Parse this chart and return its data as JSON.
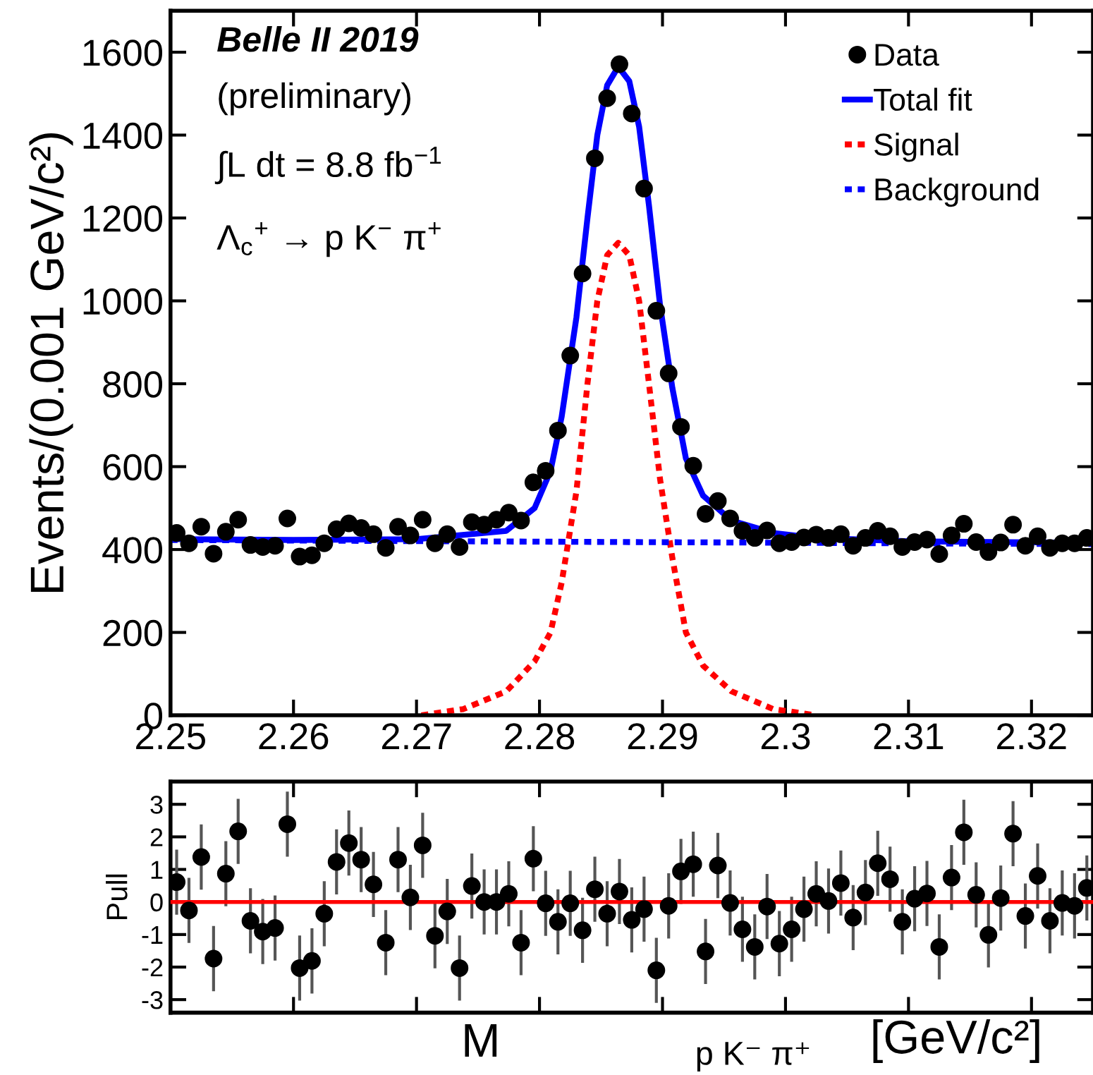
{
  "chart_data": [
    {
      "type": "scatter",
      "ylabel": "Events/(0.001 GeV/c²)",
      "xlim": [
        2.25,
        2.325
      ],
      "ylim": [
        0,
        1700
      ],
      "xticks": [
        2.25,
        2.26,
        2.27,
        2.28,
        2.29,
        2.3,
        2.31,
        2.32
      ],
      "yticks": [
        0,
        200,
        400,
        600,
        800,
        1000,
        1200,
        1400,
        1600
      ],
      "grid": false,
      "legend": "top right",
      "annotations": [
        "Belle II 2019",
        "(preliminary)",
        "∫L dt = 8.8 fb$^{−1}$",
        "Λ$_{c}$$^{+}$ → p K$^{−}$ π$^{+}$"
      ],
      "series": [
        {
          "name": "Data",
          "marker": "circle",
          "color": "#000000",
          "x": [
            2.2505,
            2.2515,
            2.2525,
            2.2535,
            2.2545,
            2.2555,
            2.2565,
            2.2575,
            2.2585,
            2.2595,
            2.2605,
            2.2615,
            2.2625,
            2.2635,
            2.2645,
            2.2655,
            2.2665,
            2.2675,
            2.2685,
            2.2695,
            2.2705,
            2.2715,
            2.2725,
            2.2735,
            2.2745,
            2.2755,
            2.2765,
            2.2775,
            2.2785,
            2.2795,
            2.2805,
            2.2815,
            2.2825,
            2.2835,
            2.2845,
            2.2855,
            2.2865,
            2.2875,
            2.2885,
            2.2895,
            2.2905,
            2.2915,
            2.2925,
            2.2935,
            2.2945,
            2.2955,
            2.2965,
            2.2975,
            2.2985,
            2.2995,
            2.3005,
            2.3015,
            2.3025,
            2.3035,
            2.3045,
            2.3055,
            2.3065,
            2.3075,
            2.3085,
            2.3095,
            2.3105,
            2.3115,
            2.3125,
            2.3135,
            2.3145,
            2.3155,
            2.3165,
            2.3175,
            2.3185,
            2.3195,
            2.3205,
            2.3215,
            2.3225,
            2.3235,
            2.3245
          ],
          "values": [
            440,
            415,
            455,
            390,
            443,
            472,
            411,
            406,
            409,
            475,
            383,
            386,
            415,
            449,
            463,
            452,
            437,
            404,
            455,
            434,
            472,
            415,
            437,
            406,
            466,
            460,
            472,
            489,
            470,
            562,
            590,
            687,
            868,
            1066,
            1344,
            1489,
            1571,
            1452,
            1271,
            976,
            825,
            696,
            602,
            486,
            517,
            475,
            445,
            428,
            446,
            415,
            418,
            429,
            436,
            428,
            437,
            409,
            428,
            445,
            432,
            406,
            418,
            424,
            389,
            434,
            462,
            418,
            394,
            417,
            460,
            409,
            432,
            404,
            415,
            415,
            428
          ]
        },
        {
          "name": "Total fit",
          "type": "line",
          "line_style": "solid",
          "color": "#0000ff",
          "x": [
            2.25,
            2.26,
            2.27,
            2.2773,
            2.2796,
            2.2809,
            2.2818,
            2.283,
            2.2839,
            2.2847,
            2.2855,
            2.2864,
            2.2873,
            2.2881,
            2.2889,
            2.2898,
            2.2908,
            2.2919,
            2.2933,
            2.2956,
            2.299,
            2.3025,
            2.31,
            2.325
          ],
          "values": [
            425,
            423,
            425,
            445,
            500,
            590,
            720,
            960,
            1200,
            1400,
            1520,
            1565,
            1530,
            1420,
            1230,
            990,
            790,
            620,
            530,
            470,
            440,
            428,
            420,
            416
          ]
        },
        {
          "name": "Signal",
          "type": "line",
          "line_style": "dotted",
          "color": "#ff0000",
          "x": [
            2.2704,
            2.2738,
            2.2773,
            2.2796,
            2.2809,
            2.2818,
            2.283,
            2.2839,
            2.2847,
            2.2855,
            2.2864,
            2.2873,
            2.2881,
            2.2889,
            2.2898,
            2.2908,
            2.2919,
            2.2933,
            2.2956,
            2.299,
            2.3025
          ],
          "values": [
            0,
            15,
            58,
            130,
            200,
            320,
            540,
            800,
            1000,
            1110,
            1140,
            1110,
            1000,
            800,
            570,
            380,
            200,
            120,
            58,
            15,
            0
          ]
        },
        {
          "name": "Background",
          "type": "line",
          "line_style": "dotted",
          "color": "#0000ff",
          "x": [
            2.25,
            2.325
          ],
          "values": [
            423,
            413
          ]
        }
      ]
    },
    {
      "type": "scatter",
      "xlabel": "M$_{p K⁻ π⁺}$ [GeV/c²]",
      "ylabel": "Pull",
      "xlim": [
        2.25,
        2.325
      ],
      "ylim": [
        -3.4,
        3.7
      ],
      "xticks": [
        2.25,
        2.26,
        2.27,
        2.28,
        2.29,
        2.3,
        2.31,
        2.32
      ],
      "yticks": [
        -3,
        -2,
        -1,
        0,
        1,
        2,
        3
      ],
      "tick_labels": "y",
      "grid": false,
      "ref_lines": [
        {
          "axis": "y",
          "value": 0,
          "color": "#ff0000"
        }
      ],
      "series": [
        {
          "type": "scatter",
          "marker": "circle",
          "color": "#000000",
          "x": [
            2.2505,
            2.2515,
            2.2525,
            2.2535,
            2.2545,
            2.2555,
            2.2565,
            2.2575,
            2.2585,
            2.2595,
            2.2605,
            2.2615,
            2.2625,
            2.2635,
            2.2645,
            2.2655,
            2.2665,
            2.2675,
            2.2685,
            2.2695,
            2.2705,
            2.2715,
            2.2725,
            2.2735,
            2.2745,
            2.2755,
            2.2765,
            2.2775,
            2.2785,
            2.2795,
            2.2805,
            2.2815,
            2.2825,
            2.2835,
            2.2845,
            2.2855,
            2.2865,
            2.2875,
            2.2885,
            2.2895,
            2.2905,
            2.2915,
            2.2925,
            2.2935,
            2.2945,
            2.2955,
            2.2965,
            2.2975,
            2.2985,
            2.2995,
            2.3005,
            2.3015,
            2.3025,
            2.3035,
            2.3045,
            2.3055,
            2.3065,
            2.3075,
            2.3085,
            2.3095,
            2.3105,
            2.3115,
            2.3125,
            2.3135,
            2.3145,
            2.3155,
            2.3165,
            2.3175,
            2.3185,
            2.3195,
            2.3205,
            2.3215,
            2.3225,
            2.3235,
            2.3245
          ],
          "values": [
            0.61,
            -0.26,
            1.38,
            -1.74,
            0.87,
            2.17,
            -0.58,
            -0.91,
            -0.8,
            2.39,
            -2.03,
            -1.81,
            -0.36,
            1.23,
            1.81,
            1.3,
            0.54,
            -1.25,
            1.3,
            0.14,
            1.74,
            -1.04,
            -0.29,
            -2.03,
            0.49,
            0,
            0,
            0.25,
            -1.25,
            1.33,
            -0.04,
            -0.61,
            -0.04,
            -0.87,
            0.39,
            -0.36,
            0.32,
            -0.55,
            -0.22,
            -2.1,
            -0.12,
            0.94,
            1.16,
            -1.52,
            1.12,
            -0.03,
            -0.84,
            -1.38,
            -0.14,
            -1.28,
            -0.84,
            -0.22,
            0.25,
            0.03,
            0.58,
            -0.48,
            0.29,
            1.19,
            0.7,
            -0.61,
            0.1,
            0.26,
            -1.38,
            0.75,
            2.14,
            0.22,
            -1.01,
            0.12,
            2.1,
            -0.43,
            0.8,
            -0.58,
            -0.03,
            -0.12,
            0.43
          ],
          "errors": [
            1,
            1,
            1,
            1,
            1,
            1,
            1,
            1,
            1,
            1,
            1,
            1,
            1,
            1,
            1,
            1,
            1,
            1,
            1,
            1,
            1,
            1,
            1,
            1,
            1,
            1,
            1,
            1,
            1,
            1,
            1,
            1,
            1,
            1,
            1,
            1,
            1,
            1,
            1,
            1,
            1,
            1,
            1,
            1,
            1,
            1,
            1,
            1,
            1,
            1,
            1,
            1,
            1,
            1,
            1,
            1,
            1,
            1,
            1,
            1,
            1,
            1,
            1,
            1,
            1,
            1,
            1,
            1,
            1,
            1,
            1,
            1,
            1,
            1,
            1
          ]
        }
      ]
    }
  ]
}
